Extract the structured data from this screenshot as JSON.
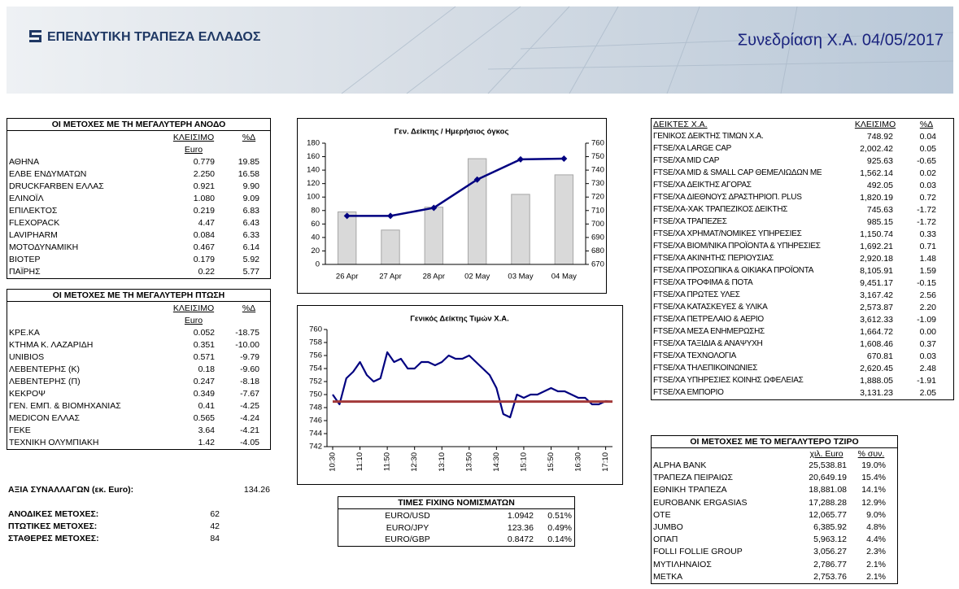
{
  "header": {
    "bank_name": "ΕΠΕΝΔΥΤΙΚΗ ΤΡΑΠΕΖΑ ΕΛΛΑΔΟΣ",
    "session_title": "Συνεδρίαση Χ.Α. 04/05/2017"
  },
  "gainers": {
    "title": "ΟΙ ΜΕΤΟΧΕΣ ΜΕ ΤΗ ΜΕΓΑΛΥΤΕΡΗ ΑΝΟΔΟ",
    "headers": [
      "ΚΛΕΙΣΙΜΟ",
      "%Δ"
    ],
    "subheader": "Euro",
    "rows": [
      [
        "ΑΘΗΝΑ",
        "0.779",
        "19.85"
      ],
      [
        "ΕΛΒΕ ΕΝΔΥΜΑΤΩΝ",
        "2.250",
        "16.58"
      ],
      [
        "DRUCKFARBEN ΕΛΛΑΣ",
        "0.921",
        "9.90"
      ],
      [
        "ΕΛΙΝΟΪΛ",
        "1.080",
        "9.09"
      ],
      [
        "ΕΠΙΛΕΚΤΟΣ",
        "0.219",
        "6.83"
      ],
      [
        "FLEXOPACK",
        "4.47",
        "6.43"
      ],
      [
        "LAVIPHARM",
        "0.084",
        "6.33"
      ],
      [
        "ΜΟΤΟΔΥΝΑΜΙΚΗ",
        "0.467",
        "6.14"
      ],
      [
        "ΒΙΟΤΕΡ",
        "0.179",
        "5.92"
      ],
      [
        "ΠΑΪΡΗΣ",
        "0.22",
        "5.77"
      ]
    ]
  },
  "losers": {
    "title": "ΟΙ ΜΕΤΟΧΕΣ ΜΕ ΤΗ ΜΕΓΑΛΥΤΕΡΗ ΠΤΩΣΗ",
    "headers": [
      "ΚΛΕΙΣΙΜΟ",
      "%Δ"
    ],
    "subheader": "Euro",
    "rows": [
      [
        "ΚΡΕ.ΚΑ",
        "0.052",
        "-18.75"
      ],
      [
        "ΚΤΗΜΑ Κ. ΛΑΖΑΡΙΔΗ",
        "0.351",
        "-10.00"
      ],
      [
        "UNIBIOS",
        "0.571",
        "-9.79"
      ],
      [
        "ΛΕΒΕΝΤΕΡΗΣ (Κ)",
        "0.18",
        "-9.60"
      ],
      [
        "ΛΕΒΕΝΤΕΡΗΣ (Π)",
        "0.247",
        "-8.18"
      ],
      [
        "ΚΕΚΡΟΨ",
        "0.349",
        "-7.67"
      ],
      [
        "ΓΕΝ. ΕΜΠ. & ΒΙΟΜΗΧΑΝΙΑΣ",
        "0.41",
        "-4.25"
      ],
      [
        "MEDICON ΕΛΛΑΣ",
        "0.565",
        "-4.24"
      ],
      [
        "ΓΕΚΕ",
        "3.64",
        "-4.21"
      ],
      [
        "ΤΕΧΝΙΚΗ ΟΛΥΜΠΙΑΚΗ",
        "1.42",
        "-4.05"
      ]
    ]
  },
  "summary": {
    "rows": [
      [
        "ΑΞΙΑ ΣΥΝΑΛΛΑΓΩΝ (εκ. Euro):",
        "134.26"
      ],
      [
        "ΑΝΟΔΙΚΕΣ ΜΕΤΟΧΕΣ:",
        "62"
      ],
      [
        "ΠΤΩΤΙΚΕΣ ΜΕΤΟΧΕΣ:",
        "42"
      ],
      [
        "ΣΤΑΘΕΡΕΣ ΜΕΤΟΧΕΣ:",
        "84"
      ]
    ]
  },
  "fx": {
    "title": "ΤΙΜΕΣ FIXING ΝΟΜΙΣΜΑΤΩΝ",
    "rows": [
      [
        "EURO/USD",
        "1.0942",
        "0.51%"
      ],
      [
        "EURO/JPY",
        "123.36",
        "0.49%"
      ],
      [
        "EURO/GBP",
        "0.8472",
        "0.14%"
      ]
    ]
  },
  "indices": {
    "headers": [
      "ΔΕΙΚΤΕΣ Χ.Α.",
      "ΚΛΕΙΣΙΜΟ",
      "%Δ"
    ],
    "rows": [
      [
        "ΓΕΝΙΚΟΣ ΔΕΙΚΤΗΣ ΤΙΜΩΝ Χ.Α.",
        "748.92",
        "0.04"
      ],
      [
        "FTSE/XA LARGE CAP",
        "2,002.42",
        "0.05"
      ],
      [
        "FTSE/XA MID CAP",
        "925.63",
        "-0.65"
      ],
      [
        "FTSE/XA MID & SMALL CAP ΘΕΜΕΛΙΩΔΩΝ ΜΕ",
        "1,562.14",
        "0.02"
      ],
      [
        "FTSE/XA ΔΕΙΚΤΗΣ ΑΓΟΡΑΣ",
        "492.05",
        "0.03"
      ],
      [
        "FTSE/XA ΔΙΕΘΝΟΥΣ ΔΡΑΣΤΗΡΙΟΠ. PLUS",
        "1,820.19",
        "0.72"
      ],
      [
        "FTSE/XA-XAK ΤΡΑΠΕΖΙΚΟΣ ΔΕΙΚΤΗΣ",
        "745.63",
        "-1.72"
      ],
      [
        "FTSE/XA ΤΡΑΠΕΖΕΣ",
        "985.15",
        "-1.72"
      ],
      [
        "FTSE/XA ΧΡΗΜΑΤ/ΝΟΜΙΚΕΣ ΥΠΗΡΕΣΙΕΣ",
        "1,150.74",
        "0.33"
      ],
      [
        "FTSE/XA ΒΙΟΜ/ΝΙΚΑ ΠΡΟΪΟΝΤΑ & ΥΠΗΡΕΣΙΕΣ",
        "1,692.21",
        "0.71"
      ],
      [
        "FTSE/XA ΑΚΙΝΗΤΗΣ ΠΕΡΙΟΥΣΙΑΣ",
        "2,920.18",
        "1.48"
      ],
      [
        "FTSE/XA ΠΡΟΣΩΠΙΚΑ & ΟΙΚΙΑΚΑ ΠΡΟΪΟΝΤΑ",
        "8,105.91",
        "1.59"
      ],
      [
        "FTSE/XA ΤΡΟΦΙΜΑ & ΠΟΤΑ",
        "9,451.17",
        "-0.15"
      ],
      [
        "FTSE/XA ΠΡΩΤΕΣ ΥΛΕΣ",
        "3,167.42",
        "2.56"
      ],
      [
        "FTSE/XA ΚΑΤΑΣΚΕΥΕΣ & ΥΛΙΚΑ",
        "2,573.87",
        "2.20"
      ],
      [
        "FTSE/XA ΠΕΤΡΕΛΑΙΟ & ΑΕΡΙΟ",
        "3,612.33",
        "-1.09"
      ],
      [
        "FTSE/XA ΜΕΣΑ ΕΝΗΜΕΡΩΣΗΣ",
        "1,664.72",
        "0.00"
      ],
      [
        "FTSE/XA ΤΑΞΙΔΙΑ & ΑΝΑΨΥΧΗ",
        "1,608.46",
        "0.37"
      ],
      [
        "FTSE/XA ΤΕΧΝΟΛΟΓΙΑ",
        "670.81",
        "0.03"
      ],
      [
        "FTSE/XA ΤΗΛΕΠΙΚΟΙΝΩΝΙΕΣ",
        "2,620.45",
        "2.48"
      ],
      [
        "FTSE/XA ΥΠΗΡΕΣΙΕΣ ΚΟΙΝΗΣ ΩΦΕΛΕΙΑΣ",
        "1,888.05",
        "-1.91"
      ],
      [
        "FTSE/XA ΕΜΠΟΡΙΟ",
        "3,131.23",
        "2.05"
      ]
    ]
  },
  "turnover": {
    "title": "ΟΙ ΜΕΤΟΧΕΣ ΜΕ ΤΟ ΜΕΓΑΛΥΤΕΡΟ ΤΖΙΡΟ",
    "headers": [
      "χιλ. Euro",
      "% συν."
    ],
    "rows": [
      [
        "ALPHA BANK",
        "25,538.81",
        "19.0%"
      ],
      [
        "ΤΡΑΠΕΖΑ ΠΕΙΡΑΙΩΣ",
        "20,649.19",
        "15.4%"
      ],
      [
        "ΕΘΝΙΚΗ ΤΡΑΠΕΖΑ",
        "18,881.08",
        "14.1%"
      ],
      [
        "EUROBANK ERGASIAS",
        "17,288.28",
        "12.9%"
      ],
      [
        "ΟΤΕ",
        "12,065.77",
        "9.0%"
      ],
      [
        "JUMBO",
        "6,385.92",
        "4.8%"
      ],
      [
        "ΟΠΑΠ",
        "5,963.12",
        "4.4%"
      ],
      [
        "FOLLI FOLLIE GROUP",
        "3,056.27",
        "2.3%"
      ],
      [
        "ΜΥΤΙΛΗΝΑΙΟΣ",
        "2,786.77",
        "2.1%"
      ],
      [
        "ΜΕΤΚΑ",
        "2,753.76",
        "2.1%"
      ]
    ]
  },
  "chart_data": [
    {
      "type": "combo",
      "title": "Γεν. Δείκτης / Ημερήσιος όγκος",
      "categories": [
        "26 Apr",
        "27 Apr",
        "28 Apr",
        "02 May",
        "03 May",
        "04 May"
      ],
      "series": [
        {
          "type": "bar",
          "color": "#d9d9d9",
          "values": [
            78,
            51,
            85,
            157,
            104,
            133
          ]
        },
        {
          "type": "line",
          "color": "#000080",
          "axis": "y2",
          "values": [
            706,
            706,
            712,
            733,
            748,
            748.5
          ]
        }
      ],
      "ylim": [
        0,
        180
      ],
      "yticks": [
        0,
        20,
        40,
        60,
        80,
        100,
        120,
        140,
        160,
        180
      ],
      "y2lim": [
        670,
        760
      ],
      "y2ticks": [
        670,
        680,
        690,
        700,
        710,
        720,
        730,
        740,
        750,
        760
      ]
    },
    {
      "type": "line",
      "title": "Γενικός Δείκτης Τιμών Χ.Α.",
      "categories": [
        "10:30",
        null,
        null,
        null,
        "11:10",
        null,
        null,
        null,
        "11:50",
        null,
        null,
        null,
        "12:30",
        null,
        null,
        null,
        "13:10",
        null,
        null,
        null,
        "13:50",
        null,
        null,
        null,
        "14:30",
        null,
        null,
        null,
        "15:10",
        null,
        null,
        null,
        "15:50",
        null,
        null,
        null,
        "16:30",
        null,
        null,
        null,
        "17:10",
        null
      ],
      "series": [
        {
          "color": "#000080",
          "values": [
            750,
            748.5,
            752.5,
            753.5,
            755,
            753,
            752,
            752.5,
            756.5,
            755,
            755.5,
            754,
            754,
            755,
            755,
            754.5,
            755,
            756,
            755.5,
            755.5,
            756,
            755,
            754,
            753,
            751,
            747,
            746.5,
            750,
            749.5,
            750,
            750,
            750.5,
            751,
            750.5,
            750.5,
            750,
            749.5,
            749.5,
            748.5,
            748.5,
            749,
            748.9
          ]
        },
        {
          "color": "#a33a3a",
          "values": [
            748.92,
            748.92,
            748.92,
            748.92,
            748.92,
            748.92,
            748.92,
            748.92,
            748.92,
            748.92,
            748.92,
            748.92,
            748.92,
            748.92,
            748.92,
            748.92,
            748.92,
            748.92,
            748.92,
            748.92,
            748.92,
            748.92,
            748.92,
            748.92,
            748.92,
            748.92,
            748.92,
            748.92,
            748.92,
            748.92,
            748.92,
            748.92,
            748.92,
            748.92,
            748.92,
            748.92,
            748.92,
            748.92,
            748.92,
            748.92,
            748.92,
            748.92
          ]
        }
      ],
      "ylim": [
        742,
        760
      ],
      "yticks": [
        742,
        744,
        746,
        748,
        750,
        752,
        754,
        756,
        758,
        760
      ]
    }
  ]
}
